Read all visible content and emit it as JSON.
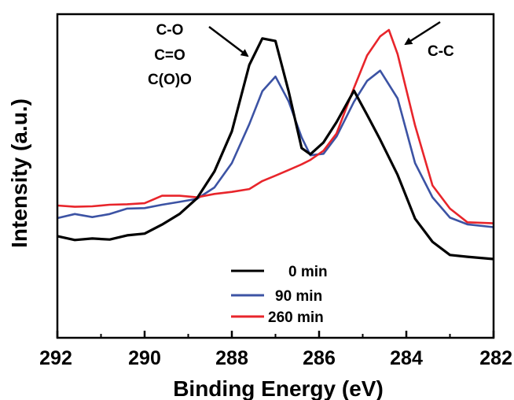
{
  "chart_data": {
    "type": "line",
    "xlabel": "Binding Energy (eV)",
    "ylabel": "Intensity (a.u.)",
    "xlim": [
      292,
      282
    ],
    "x_reversed": true,
    "ylim": [
      0,
      100
    ],
    "y_ticks_shown": false,
    "x_ticks": [
      292,
      290,
      288,
      286,
      284,
      282
    ],
    "x_tick_labels": [
      "292",
      "290",
      "288",
      "286",
      "284",
      "282"
    ],
    "legend_position": "bottom-center",
    "annotations": [
      {
        "lines": [
          "C-O",
          "C=O",
          "C(O)O"
        ],
        "arrow_to": [
          287.4,
          91
        ]
      },
      {
        "lines": [
          "C-C"
        ],
        "arrow_to": [
          284.3,
          96
        ]
      }
    ],
    "series": [
      {
        "name": "0 min",
        "color": "#000000",
        "x": [
          292,
          291.6,
          291.2,
          290.8,
          290.4,
          290,
          289.6,
          289.2,
          288.8,
          288.4,
          288,
          287.6,
          287.3,
          287.0,
          286.7,
          286.4,
          286.2,
          285.9,
          285.6,
          285.2,
          284.9,
          284.6,
          284.2,
          283.8,
          283.4,
          283,
          282.6,
          282
        ],
        "y": [
          19.9,
          18.4,
          19.0,
          18.6,
          20.2,
          20.9,
          24.4,
          28.5,
          34.6,
          45.0,
          60.6,
          86.4,
          96.7,
          95.7,
          76.2,
          54.1,
          51.7,
          56.3,
          64.2,
          76.4,
          67.0,
          57.4,
          43.7,
          26.7,
          17.7,
          12.6,
          11.9,
          11.0
        ]
      },
      {
        "name": "90 min",
        "color": "#3c53a4",
        "x": [
          292,
          291.6,
          291.2,
          290.8,
          290.4,
          290,
          289.6,
          289.2,
          288.8,
          288.4,
          288,
          287.6,
          287.3,
          287.0,
          286.7,
          286.4,
          286.2,
          285.9,
          285.6,
          285.2,
          284.9,
          284.6,
          284.2,
          283.8,
          283.4,
          283,
          282.6,
          282
        ],
        "y": [
          26.9,
          28.5,
          27.3,
          28.5,
          30.6,
          30.8,
          32.1,
          33.2,
          34.4,
          38.8,
          48.3,
          63.4,
          76.2,
          81.9,
          72.3,
          58.3,
          51.3,
          51.9,
          58.6,
          72.1,
          80.2,
          84.2,
          73.4,
          48.3,
          35.0,
          27.1,
          24.5,
          23.4
        ]
      },
      {
        "name": "260 min",
        "color": "#e8252b",
        "x": [
          292,
          291.6,
          291.2,
          290.8,
          290.4,
          290,
          289.6,
          289.2,
          288.8,
          288.4,
          288,
          287.6,
          287.3,
          287.0,
          286.7,
          286.4,
          286.2,
          285.9,
          285.6,
          285.2,
          284.9,
          284.6,
          284.4,
          284.2,
          283.8,
          283.4,
          283,
          282.6,
          282
        ],
        "y": [
          31.8,
          31.3,
          31.5,
          32.1,
          32.3,
          32.7,
          35.6,
          35.6,
          35.0,
          36.3,
          37.1,
          38.2,
          41.3,
          43.4,
          45.6,
          47.8,
          49.5,
          53.1,
          59.8,
          77.5,
          90.1,
          97.5,
          100.0,
          90.6,
          62.9,
          39.6,
          30.6,
          25.3,
          24.9
        ]
      }
    ]
  }
}
